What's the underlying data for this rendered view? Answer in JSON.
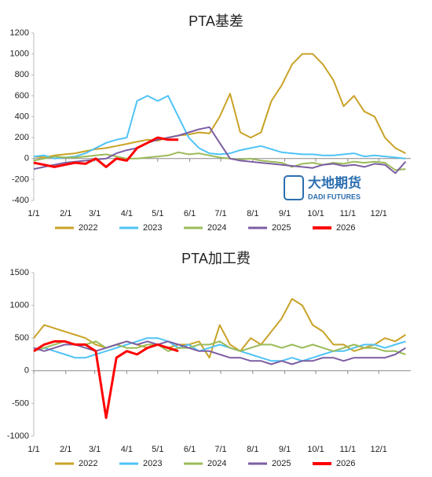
{
  "chart_data": [
    {
      "type": "line",
      "title": "PTA基差",
      "watermark_title": "大地期货",
      "watermark_subtitle": "DADI FUTURES",
      "x": [
        0,
        10,
        20,
        30,
        40,
        50,
        60,
        70,
        80,
        90,
        100,
        110,
        120,
        130,
        140,
        150,
        160,
        170,
        180,
        190,
        200,
        210,
        220,
        230,
        240,
        250,
        260,
        270,
        280,
        290,
        300,
        310,
        320,
        330,
        340,
        350,
        360
      ],
      "xlim": [
        0,
        365
      ],
      "xticks": [
        {
          "value": 0,
          "label": "1/1"
        },
        {
          "value": 31,
          "label": "2/1"
        },
        {
          "value": 59,
          "label": "3/1"
        },
        {
          "value": 90,
          "label": "4/1"
        },
        {
          "value": 120,
          "label": "5/1"
        },
        {
          "value": 151,
          "label": "6/1"
        },
        {
          "value": 181,
          "label": "7/1"
        },
        {
          "value": 212,
          "label": "8/1"
        },
        {
          "value": 243,
          "label": "9/1"
        },
        {
          "value": 273,
          "label": "10/1"
        },
        {
          "value": 304,
          "label": "11/1"
        },
        {
          "value": 334,
          "label": "12/1"
        }
      ],
      "ylim": [
        -400,
        1200
      ],
      "yticks": [
        -400,
        -200,
        0,
        200,
        400,
        600,
        800,
        1000,
        1200
      ],
      "series": [
        {
          "name": "2022",
          "color": "#c9a227",
          "values": [
            20,
            10,
            30,
            40,
            50,
            70,
            90,
            100,
            120,
            140,
            160,
            180,
            170,
            200,
            220,
            230,
            250,
            240,
            400,
            620,
            250,
            200,
            250,
            550,
            700,
            900,
            1000,
            1000,
            900,
            750,
            500,
            600,
            450,
            400,
            200,
            100,
            50
          ]
        },
        {
          "name": "2023",
          "color": "#4fc3f7",
          "values": [
            20,
            30,
            0,
            10,
            20,
            50,
            100,
            150,
            180,
            200,
            550,
            600,
            550,
            600,
            400,
            200,
            100,
            50,
            40,
            50,
            80,
            100,
            120,
            90,
            60,
            50,
            40,
            40,
            30,
            30,
            40,
            50,
            20,
            30,
            20,
            10,
            0
          ]
        },
        {
          "name": "2024",
          "color": "#9bbb59",
          "values": [
            -20,
            0,
            20,
            10,
            10,
            20,
            30,
            40,
            20,
            0,
            0,
            10,
            20,
            30,
            60,
            40,
            50,
            30,
            10,
            0,
            -10,
            0,
            -20,
            -30,
            -40,
            -80,
            -50,
            -40,
            -60,
            -40,
            -50,
            -30,
            -40,
            -30,
            -40,
            -110,
            -100
          ]
        },
        {
          "name": "2025",
          "color": "#7d5ea3",
          "values": [
            -100,
            -80,
            -60,
            -40,
            -30,
            -20,
            -10,
            0,
            50,
            80,
            100,
            150,
            180,
            200,
            220,
            250,
            280,
            300,
            150,
            0,
            -20,
            -30,
            -40,
            -50,
            -60,
            -70,
            -80,
            -90,
            -60,
            -50,
            -70,
            -60,
            -80,
            -50,
            -60,
            -140,
            -30
          ]
        },
        {
          "name": "2026",
          "color": "#ff0000",
          "values": [
            -40,
            -60,
            -80,
            -60,
            -40,
            -50,
            0,
            -80,
            0,
            -20,
            100,
            150,
            200,
            180,
            180,
            null,
            null,
            null,
            null,
            null,
            null,
            null,
            null,
            null,
            null,
            null,
            null,
            null,
            null,
            null,
            null,
            null,
            null,
            null,
            null,
            null,
            null
          ]
        }
      ]
    },
    {
      "type": "line",
      "title": "PTA加工费",
      "x": [
        0,
        10,
        20,
        30,
        40,
        50,
        60,
        70,
        80,
        90,
        100,
        110,
        120,
        130,
        140,
        150,
        160,
        170,
        180,
        190,
        200,
        210,
        220,
        230,
        240,
        250,
        260,
        270,
        280,
        290,
        300,
        310,
        320,
        330,
        340,
        350,
        360
      ],
      "xlim": [
        0,
        365
      ],
      "xticks": [
        {
          "value": 0,
          "label": "1/1"
        },
        {
          "value": 31,
          "label": "2/1"
        },
        {
          "value": 59,
          "label": "3/1"
        },
        {
          "value": 90,
          "label": "4/1"
        },
        {
          "value": 120,
          "label": "5/1"
        },
        {
          "value": 151,
          "label": "6/1"
        },
        {
          "value": 181,
          "label": "7/1"
        },
        {
          "value": 212,
          "label": "8/1"
        },
        {
          "value": 243,
          "label": "9/1"
        },
        {
          "value": 273,
          "label": "10/1"
        },
        {
          "value": 304,
          "label": "11/1"
        },
        {
          "value": 334,
          "label": "12/1"
        }
      ],
      "ylim": [
        -1000,
        1500
      ],
      "yticks": [
        -1000,
        -500,
        0,
        500,
        1000,
        1500
      ],
      "series": [
        {
          "name": "2022",
          "color": "#c9a227",
          "values": [
            500,
            700,
            650,
            600,
            550,
            500,
            400,
            350,
            400,
            450,
            400,
            350,
            400,
            350,
            400,
            400,
            450,
            200,
            700,
            400,
            300,
            500,
            400,
            600,
            800,
            1100,
            1000,
            700,
            600,
            400,
            400,
            300,
            350,
            400,
            500,
            450,
            550
          ]
        },
        {
          "name": "2023",
          "color": "#4fc3f7",
          "values": [
            300,
            350,
            300,
            250,
            200,
            200,
            250,
            300,
            350,
            400,
            450,
            500,
            500,
            450,
            350,
            400,
            300,
            350,
            400,
            350,
            300,
            250,
            200,
            150,
            150,
            200,
            150,
            200,
            250,
            300,
            300,
            350,
            400,
            400,
            350,
            400,
            450
          ]
        },
        {
          "name": "2024",
          "color": "#9bbb59",
          "values": [
            300,
            350,
            400,
            450,
            400,
            400,
            450,
            350,
            400,
            350,
            350,
            400,
            400,
            300,
            350,
            350,
            400,
            400,
            450,
            350,
            300,
            350,
            400,
            400,
            350,
            400,
            350,
            400,
            350,
            300,
            350,
            400,
            350,
            350,
            300,
            300,
            250
          ]
        },
        {
          "name": "2025",
          "color": "#7d5ea3",
          "values": [
            350,
            300,
            350,
            400,
            400,
            350,
            300,
            350,
            400,
            450,
            400,
            450,
            400,
            450,
            400,
            350,
            300,
            300,
            250,
            200,
            200,
            150,
            150,
            100,
            150,
            100,
            150,
            150,
            200,
            200,
            150,
            200,
            200,
            200,
            200,
            250,
            350
          ]
        },
        {
          "name": "2026",
          "color": "#ff0000",
          "values": [
            300,
            400,
            450,
            450,
            400,
            400,
            300,
            -720,
            200,
            300,
            250,
            350,
            400,
            350,
            300,
            null,
            null,
            null,
            null,
            null,
            null,
            null,
            null,
            null,
            null,
            null,
            null,
            null,
            null,
            null,
            null,
            null,
            null,
            null,
            null,
            null,
            null
          ]
        }
      ]
    }
  ]
}
